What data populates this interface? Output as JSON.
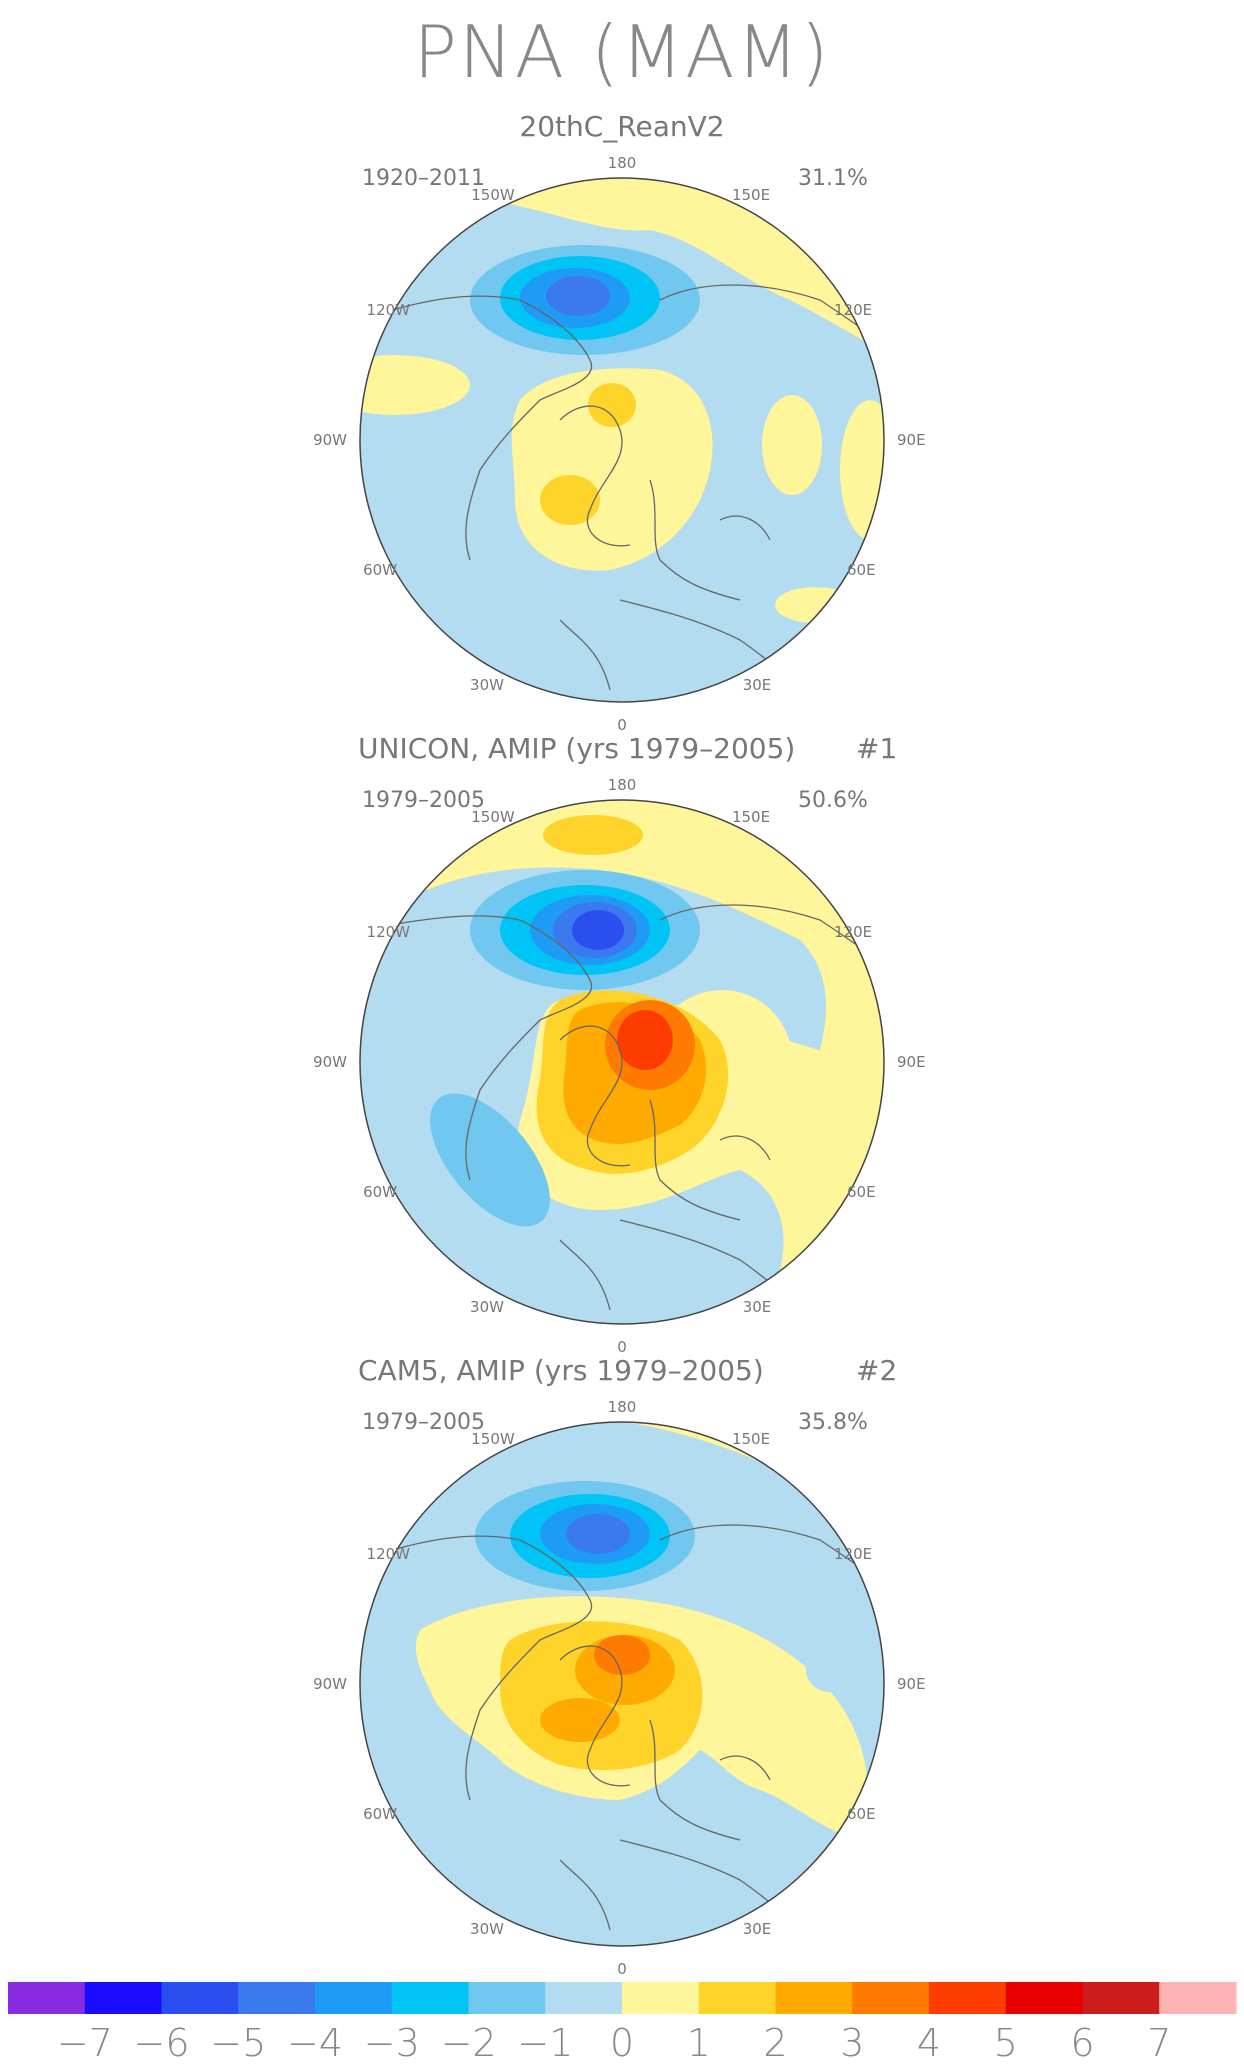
{
  "title": "PNA (MAM)",
  "panels": [
    {
      "title": "20thC_ReanV2",
      "number": "",
      "years": "1920–2011",
      "variance": "31.1%",
      "lon_labels": [
        "180",
        "150W",
        "150E",
        "120W",
        "120E",
        "90W",
        "90E",
        "60W",
        "60E",
        "30W",
        "30E",
        "0"
      ]
    },
    {
      "title": "UNICON, AMIP (yrs 1979–2005)",
      "number": "#1",
      "years": "1979–2005",
      "variance": "50.6%",
      "lon_labels": [
        "180",
        "150W",
        "150E",
        "120W",
        "120E",
        "90W",
        "90E",
        "60W",
        "60E",
        "30W",
        "30E",
        "0"
      ]
    },
    {
      "title": "CAM5, AMIP (yrs 1979–2005)",
      "number": "#2",
      "years": "1979–2005",
      "variance": "35.8%",
      "lon_labels": [
        "180",
        "150W",
        "150E",
        "120W",
        "120E",
        "90W",
        "90E",
        "60W",
        "60E",
        "30W",
        "30E",
        "0"
      ]
    }
  ],
  "colorbar": {
    "colors": [
      "#8a2be2",
      "#1a0cff",
      "#2a4ef0",
      "#3a7aee",
      "#1e9cf5",
      "#00c4f6",
      "#70c8f0",
      "#b3dcf0",
      "#fff59a",
      "#ffd42a",
      "#ffaa00",
      "#ff7a00",
      "#ff3c00",
      "#e80000",
      "#cc1c1c",
      "#ffb3b3"
    ],
    "labels": [
      "−7",
      "−6",
      "−5",
      "−4",
      "−3",
      "−2",
      "−1",
      "0",
      "1",
      "2",
      "3",
      "4",
      "5",
      "6",
      "7"
    ]
  }
}
